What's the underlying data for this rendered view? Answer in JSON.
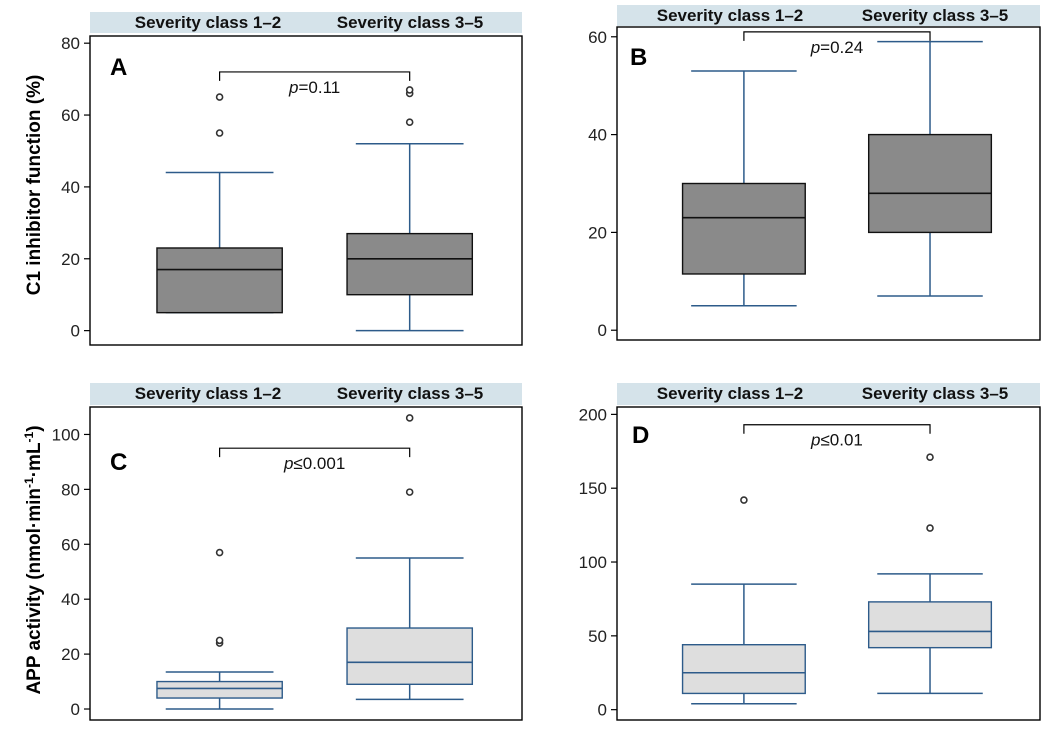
{
  "figure": {
    "ylabel_top": "C1 inhibitor function (%)",
    "ylabel_bottom": "APP activity (nmol·min",
    "ylabel_bottom_sup1": "-1",
    "ylabel_bottom_mid": "·mL",
    "ylabel_bottom_sup2": "-1",
    "ylabel_bottom_end": ")"
  },
  "colors": {
    "box_stroke": "#2d5b8a",
    "dark_fill": "#8a8a8a",
    "light_fill": "#dedede",
    "header_band": "#d5e3ea"
  },
  "chart_data": [
    {
      "type": "box",
      "letter": "A",
      "headers": [
        "Severity class 1–2",
        "Severity class 3–5"
      ],
      "categories": [
        "Severity class 1–2",
        "Severity class 3–5"
      ],
      "ylim": [
        -4,
        82
      ],
      "yticks": [
        0,
        20,
        40,
        60,
        80
      ],
      "fill": "dark",
      "p_text_italic": "p",
      "p_text_rest": "=0.11",
      "p_bracket_y": 72,
      "boxes": [
        {
          "whisker_low": 5,
          "q1": 5,
          "median": 17,
          "q3": 23,
          "whisker_high": 44,
          "outliers": [
            55,
            65
          ]
        },
        {
          "whisker_low": 0,
          "q1": 10,
          "median": 20,
          "q3": 27,
          "whisker_high": 52,
          "outliers": [
            58,
            66,
            67
          ]
        }
      ]
    },
    {
      "type": "box",
      "letter": "B",
      "headers": [
        "Severity class 1–2",
        "Severity class 3–5"
      ],
      "categories": [
        "Severity class 1–2",
        "Severity class 3–5"
      ],
      "ylim": [
        -2,
        62
      ],
      "yticks": [
        0,
        20,
        40,
        60
      ],
      "fill": "dark",
      "p_text_italic": "p",
      "p_text_rest": "=0.24",
      "p_bracket_y": 61,
      "boxes": [
        {
          "whisker_low": 5,
          "q1": 11.5,
          "median": 23,
          "q3": 30,
          "whisker_high": 53,
          "outliers": []
        },
        {
          "whisker_low": 7,
          "q1": 20,
          "median": 28,
          "q3": 40,
          "whisker_high": 59,
          "outliers": []
        }
      ]
    },
    {
      "type": "box",
      "letter": "C",
      "headers": [
        "Severity class 1–2",
        "Severity class 3–5"
      ],
      "categories": [
        "Severity class 1–2",
        "Severity class 3–5"
      ],
      "ylim": [
        -4,
        110
      ],
      "yticks": [
        0,
        20,
        40,
        60,
        80,
        100
      ],
      "fill": "light",
      "p_text_italic": "p",
      "p_text_rest": "≤0.001",
      "p_bracket_y": 95,
      "boxes": [
        {
          "whisker_low": 0,
          "q1": 4,
          "median": 7.5,
          "q3": 10,
          "whisker_high": 13.5,
          "outliers": [
            24,
            25,
            57
          ]
        },
        {
          "whisker_low": 3.5,
          "q1": 9,
          "median": 17,
          "q3": 29.5,
          "whisker_high": 55,
          "outliers": [
            79,
            106
          ]
        }
      ]
    },
    {
      "type": "box",
      "letter": "D",
      "headers": [
        "Severity class 1–2",
        "Severity class 3–5"
      ],
      "categories": [
        "Severity class 1–2",
        "Severity class 3–5"
      ],
      "ylim": [
        -7,
        205
      ],
      "yticks": [
        0,
        50,
        100,
        150,
        200
      ],
      "fill": "light",
      "p_text_italic": "p",
      "p_text_rest": "≤0.01",
      "p_bracket_y": 193,
      "boxes": [
        {
          "whisker_low": 4,
          "q1": 11,
          "median": 25,
          "q3": 44,
          "whisker_high": 85,
          "outliers": [
            142
          ]
        },
        {
          "whisker_low": 11,
          "q1": 42,
          "median": 53,
          "q3": 73,
          "whisker_high": 92,
          "outliers": [
            123,
            171
          ]
        }
      ]
    }
  ]
}
